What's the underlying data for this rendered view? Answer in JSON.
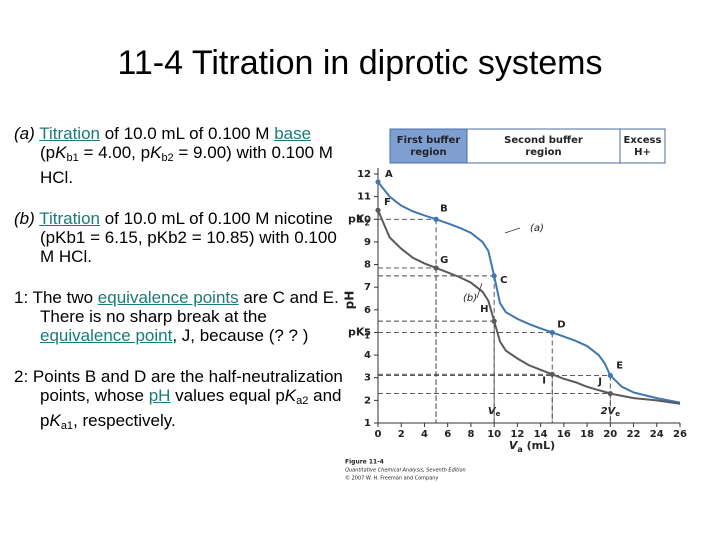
{
  "slide": {
    "title": "11-4 Titration in diprotic systems",
    "paragraphs": [
      [
        {
          "t": "(a)",
          "s": "italic"
        },
        {
          "t": " "
        },
        {
          "t": "Titration",
          "s": "link"
        },
        {
          "t": " of 10.0 mL of 0.100 M "
        },
        {
          "t": "base",
          "s": "link"
        },
        {
          "t": " (p"
        },
        {
          "t": "K",
          "s": "italic"
        },
        {
          "t": "b1",
          "s": "sub"
        },
        {
          "t": " = 4.00, p"
        },
        {
          "t": "K",
          "s": "italic"
        },
        {
          "t": "b2",
          "s": "sub"
        },
        {
          "t": " = 9.00) with 0.100 M HCl."
        }
      ],
      [
        {
          "t": "(b)",
          "s": "italic"
        },
        {
          "t": " "
        },
        {
          "t": "Titration",
          "s": "link"
        },
        {
          "t": " of 10.0 mL of 0.100 M nicotine (pKb1 = 6.15, pKb2 = 10.85) with 0.100 M HCl."
        }
      ],
      [
        {
          "t": "1: The two "
        },
        {
          "t": "equivalence points",
          "s": "link"
        },
        {
          "t": " are C and E. There is no sharp break at the "
        },
        {
          "t": "equivalence point",
          "s": "link"
        },
        {
          "t": ", J, because (? ? )"
        }
      ],
      [
        {
          "t": "2: Points B and D are the half-neutralization points, whose "
        },
        {
          "t": "pH",
          "s": "link"
        },
        {
          "t": " values equal p"
        },
        {
          "t": "K",
          "s": "italic"
        },
        {
          "t": "a2",
          "s": "sub"
        },
        {
          "t": " and p"
        },
        {
          "t": "K",
          "s": "italic"
        },
        {
          "t": "a1",
          "s": "sub"
        },
        {
          "t": ", respectively."
        }
      ]
    ],
    "caption": [
      "Figure 11-4",
      "Quantitative Chemical Analysis, Seventh Edition",
      "© 2007 W. H. Freeman and Company"
    ]
  },
  "chart_data": {
    "type": "line",
    "regions": [
      "First buffer region",
      "Second buffer region",
      "Excess H+"
    ],
    "y_label": "pH",
    "x_label": [
      "V",
      "a",
      " (mL)"
    ],
    "x": [
      0,
      1,
      2,
      3,
      4,
      5,
      6,
      7,
      8,
      9,
      9.5,
      10,
      10.5,
      11,
      12,
      13,
      14,
      15,
      16,
      17,
      18,
      19,
      19.5,
      20,
      21,
      22,
      24,
      26
    ],
    "series": [
      {
        "name": "(a)",
        "color": "#3f77b0",
        "values": [
          11.65,
          11.0,
          10.6,
          10.35,
          10.17,
          10.0,
          9.82,
          9.63,
          9.4,
          9.0,
          8.6,
          7.5,
          6.3,
          5.9,
          5.6,
          5.37,
          5.18,
          5.0,
          4.82,
          4.63,
          4.4,
          4.0,
          3.65,
          3.1,
          2.6,
          2.35,
          2.1,
          1.9
        ]
      },
      {
        "name": "(b)",
        "color": "#5a5a5a",
        "values": [
          10.4,
          9.2,
          8.7,
          8.3,
          8.05,
          7.85,
          7.65,
          7.45,
          7.2,
          6.8,
          6.4,
          5.5,
          4.6,
          4.2,
          3.85,
          3.55,
          3.35,
          3.15,
          2.95,
          2.8,
          2.6,
          2.45,
          2.38,
          2.3,
          2.2,
          2.1,
          2.0,
          1.85
        ]
      }
    ],
    "points": [
      {
        "label": "A",
        "x": 0,
        "y": 11.65,
        "series": 0
      },
      {
        "label": "B",
        "x": 5,
        "y": 10.0,
        "series": 0
      },
      {
        "label": "C",
        "x": 10,
        "y": 7.5,
        "series": 0
      },
      {
        "label": "D",
        "x": 15,
        "y": 5.0,
        "series": 0
      },
      {
        "label": "E",
        "x": 20,
        "y": 3.1,
        "series": 0
      },
      {
        "label": "F",
        "x": 0,
        "y": 10.4,
        "series": 1
      },
      {
        "label": "G",
        "x": 5,
        "y": 7.85,
        "series": 1
      },
      {
        "label": "H",
        "x": 10,
        "y": 5.5,
        "series": 1
      },
      {
        "label": "I",
        "x": 15,
        "y": 3.15,
        "series": 1
      },
      {
        "label": "J",
        "x": 20,
        "y": 2.3,
        "series": 1
      }
    ],
    "y_marks": [
      {
        "value": 10,
        "label": "pK",
        "sub": "2"
      },
      {
        "value": 5,
        "label": "pK",
        "sub": "1"
      }
    ],
    "x_marks": [
      {
        "value": 10,
        "label": "V",
        "sub": "e"
      },
      {
        "value": 20,
        "label": "2V",
        "sub": "e"
      }
    ],
    "xlim": [
      0,
      26
    ],
    "xticks": [
      0,
      2,
      4,
      6,
      8,
      10,
      12,
      14,
      16,
      18,
      20,
      22,
      24,
      26
    ],
    "ylim": [
      1,
      12
    ],
    "yticks": [
      1,
      2,
      3,
      4,
      5,
      6,
      7,
      8,
      9,
      10,
      11,
      12
    ],
    "grid": false
  }
}
